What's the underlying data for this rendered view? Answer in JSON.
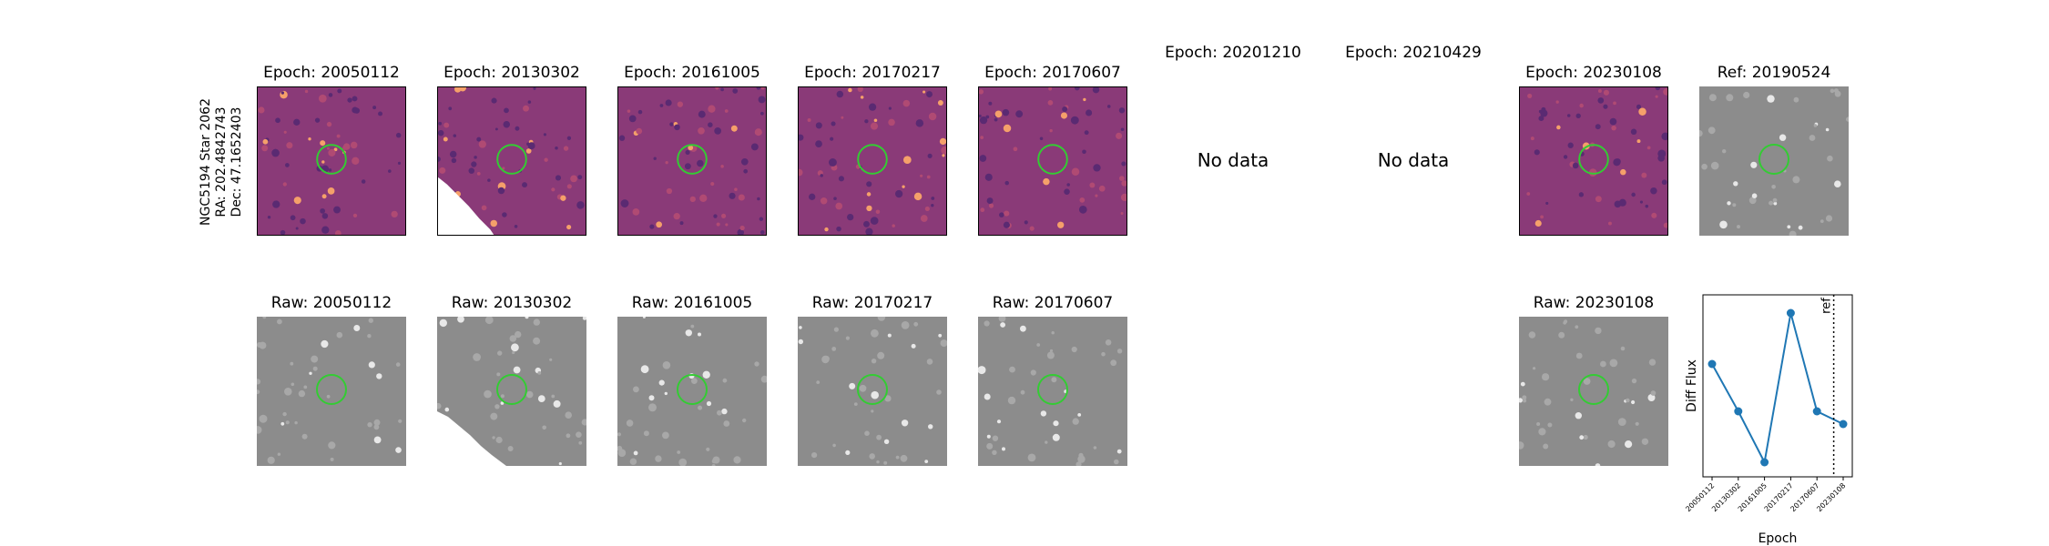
{
  "star_label": {
    "name": "NGC5194 Star 2062",
    "ra": "RA: 202.4842743",
    "dec": "Dec: 47.1652403"
  },
  "diff_panels": [
    {
      "title": "Epoch: 20050112",
      "has_data": true
    },
    {
      "title": "Epoch: 20130302",
      "has_data": true
    },
    {
      "title": "Epoch: 20161005",
      "has_data": true
    },
    {
      "title": "Epoch: 20170217",
      "has_data": true
    },
    {
      "title": "Epoch: 20170607",
      "has_data": true
    },
    {
      "title": "Epoch: 20201210",
      "has_data": false,
      "message": "No data"
    },
    {
      "title": "Epoch: 20210429",
      "has_data": false,
      "message": "No data"
    },
    {
      "title": "Epoch: 20230108",
      "has_data": true
    }
  ],
  "ref_panel": {
    "title": "Ref: 20190524"
  },
  "raw_panels": [
    {
      "title": "Raw: 20050112"
    },
    {
      "title": "Raw: 20130302"
    },
    {
      "title": "Raw: 20161005"
    },
    {
      "title": "Raw: 20170217"
    },
    {
      "title": "Raw: 20170607"
    },
    {
      "title": "Raw: 20230108"
    }
  ],
  "colors": {
    "circle": "#33cc33",
    "series": "#1f77b4",
    "diff_bg": "#8a3a78",
    "raw_bg": "#8c8c8c"
  },
  "chart_data": {
    "type": "line",
    "categories": [
      "20050112",
      "20130302",
      "20161005",
      "20170217",
      "20170607",
      "20230108"
    ],
    "values": [
      0.62,
      0.36,
      0.08,
      0.9,
      0.36,
      0.29
    ],
    "xlabel": "Epoch",
    "ylabel": "Diff Flux",
    "ref_line": {
      "after_category": "20170607",
      "label": "ref",
      "style": "dotted"
    },
    "ylim": [
      0,
      1
    ],
    "grid": false
  }
}
